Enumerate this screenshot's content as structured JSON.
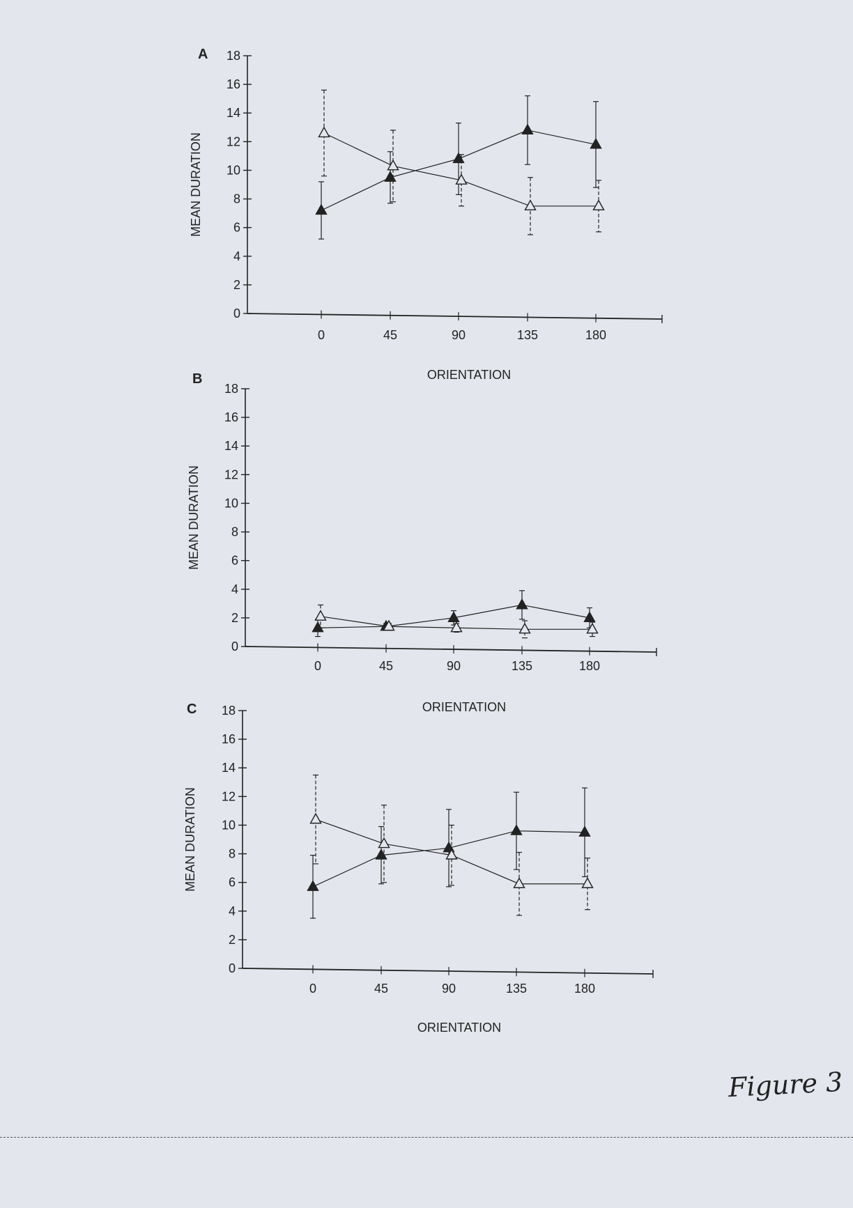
{
  "figure_label": "Figure 3",
  "colors": {
    "ink": "#222222",
    "background": "#e3e6ec"
  },
  "chart_data": [
    {
      "panel": "A",
      "type": "line",
      "xlabel": "ORIENTATION",
      "ylabel": "MEAN DURATION",
      "categories": [
        "0",
        "45",
        "90",
        "135",
        "180"
      ],
      "yticks": [
        "0",
        "2",
        "4",
        "6",
        "8",
        "10",
        "12",
        "14",
        "16",
        "18"
      ],
      "ylim": [
        0,
        18
      ],
      "series": [
        {
          "marker": "filled-triangle",
          "values": [
            7.2,
            9.5,
            10.8,
            12.8,
            11.8
          ],
          "error": [
            2.0,
            1.8,
            2.5,
            2.4,
            3.0
          ]
        },
        {
          "marker": "open-triangle",
          "values": [
            12.6,
            10.3,
            9.3,
            7.5,
            7.5
          ],
          "error": [
            3.0,
            2.5,
            1.8,
            2.0,
            1.8
          ]
        }
      ]
    },
    {
      "panel": "B",
      "type": "line",
      "xlabel": "ORIENTATION",
      "ylabel": "MEAN DURATION",
      "categories": [
        "0",
        "45",
        "90",
        "135",
        "180"
      ],
      "yticks": [
        "0",
        "2",
        "4",
        "6",
        "8",
        "10",
        "12",
        "14",
        "16",
        "18"
      ],
      "ylim": [
        0,
        18
      ],
      "series": [
        {
          "marker": "filled-triangle",
          "values": [
            1.3,
            1.4,
            2.0,
            2.9,
            2.0
          ],
          "error": [
            0.6,
            0.2,
            0.5,
            1.0,
            0.7
          ]
        },
        {
          "marker": "open-triangle",
          "values": [
            2.1,
            1.4,
            1.3,
            1.2,
            1.2
          ],
          "error": [
            0.8,
            0.2,
            0.3,
            0.6,
            0.5
          ]
        }
      ]
    },
    {
      "panel": "C",
      "type": "line",
      "xlabel": "ORIENTATION",
      "ylabel": "MEAN DURATION",
      "categories": [
        "0",
        "45",
        "90",
        "135",
        "180"
      ],
      "yticks": [
        "0",
        "2",
        "4",
        "6",
        "8",
        "10",
        "12",
        "14",
        "16",
        "18"
      ],
      "ylim": [
        0,
        18
      ],
      "series": [
        {
          "marker": "filled-triangle",
          "values": [
            5.7,
            7.9,
            8.4,
            9.6,
            9.5
          ],
          "error": [
            2.2,
            2.0,
            2.7,
            2.7,
            3.1
          ]
        },
        {
          "marker": "open-triangle",
          "values": [
            10.4,
            8.7,
            7.9,
            5.9,
            5.9
          ],
          "error": [
            3.1,
            2.7,
            2.1,
            2.2,
            1.8
          ]
        }
      ]
    }
  ]
}
